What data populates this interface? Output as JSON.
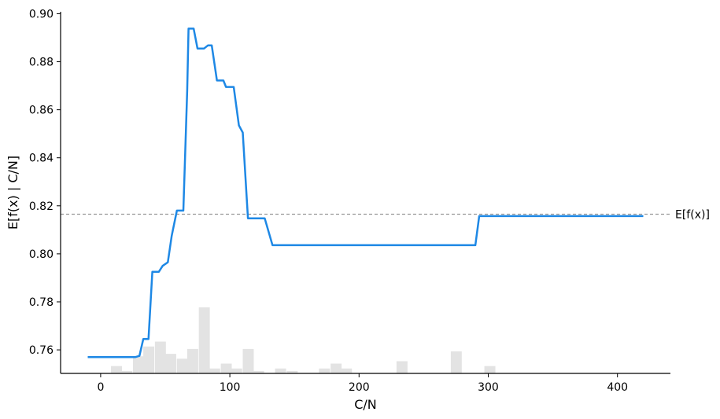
{
  "chart_data": {
    "type": "line",
    "title": "",
    "xlabel": "C/N",
    "ylabel": "E[f(x) | C/N]",
    "xlim": [
      -31,
      441
    ],
    "ylim": [
      0.7502,
      0.9008
    ],
    "xticks": [
      0,
      100,
      200,
      300,
      400
    ],
    "xtick_labels": [
      "0",
      "100",
      "200",
      "300",
      "400"
    ],
    "yticks": [
      0.76,
      0.78,
      0.8,
      0.82,
      0.84,
      0.86,
      0.88,
      0.9
    ],
    "ytick_labels": [
      "0.76",
      "0.78",
      "0.80",
      "0.82",
      "0.84",
      "0.86",
      "0.88",
      "0.90"
    ],
    "grid": false,
    "colors": {
      "line": "#1e88e5",
      "reference": "#999999",
      "histogram": "#e3e3e3",
      "axis": "#000000"
    },
    "series": [
      {
        "x": [
          -10,
          5,
          20,
          27,
          30,
          33,
          37,
          40,
          42,
          45,
          48,
          52,
          55,
          59,
          60,
          63,
          64,
          67,
          68,
          70,
          72,
          75,
          78,
          80,
          83,
          86,
          90,
          92,
          95,
          97,
          100,
          103,
          107,
          110,
          114,
          117,
          120,
          124,
          127,
          133,
          137,
          140,
          150,
          160,
          170,
          180,
          190,
          200,
          220,
          240,
          260,
          280,
          290,
          293,
          296,
          310,
          330,
          350,
          380,
          400,
          420
        ],
        "values": [
          0.757,
          0.757,
          0.757,
          0.757,
          0.7575,
          0.7645,
          0.7645,
          0.7925,
          0.7925,
          0.7925,
          0.795,
          0.7965,
          0.8075,
          0.818,
          0.818,
          0.818,
          0.818,
          0.868,
          0.8938,
          0.8938,
          0.8938,
          0.8855,
          0.8855,
          0.8855,
          0.8868,
          0.8868,
          0.8722,
          0.8722,
          0.8722,
          0.8695,
          0.8695,
          0.8695,
          0.8535,
          0.8505,
          0.8148,
          0.8148,
          0.8148,
          0.8148,
          0.8148,
          0.8036,
          0.8036,
          0.8036,
          0.8036,
          0.8036,
          0.8036,
          0.8036,
          0.8036,
          0.8036,
          0.8036,
          0.8036,
          0.8036,
          0.8036,
          0.8036,
          0.8157,
          0.8157,
          0.8157,
          0.8157,
          0.8157,
          0.8157,
          0.8157,
          0.8157
        ]
      }
    ],
    "reference_line": {
      "y": 0.8165,
      "label": "E[f(x)]"
    },
    "histogram": {
      "bin_starts": [
        8,
        16,
        25,
        33,
        42,
        50,
        59,
        67,
        76,
        84,
        93,
        101,
        110,
        118,
        127,
        135,
        144,
        152,
        161,
        169,
        178,
        186,
        195,
        203,
        212,
        220,
        229,
        237,
        246,
        254,
        263,
        271,
        280,
        288,
        297,
        305,
        314,
        322,
        331,
        339
      ],
      "bin_width": 8.5,
      "counts": [
        3,
        1,
        7,
        11,
        13,
        8,
        6,
        10,
        27,
        2,
        4,
        2,
        10,
        1,
        0,
        2,
        1,
        0,
        0,
        2,
        4,
        2,
        0,
        0,
        0,
        0,
        5,
        0,
        0,
        0,
        0,
        9,
        0,
        0,
        3,
        0,
        0,
        0,
        0,
        0
      ]
    }
  }
}
